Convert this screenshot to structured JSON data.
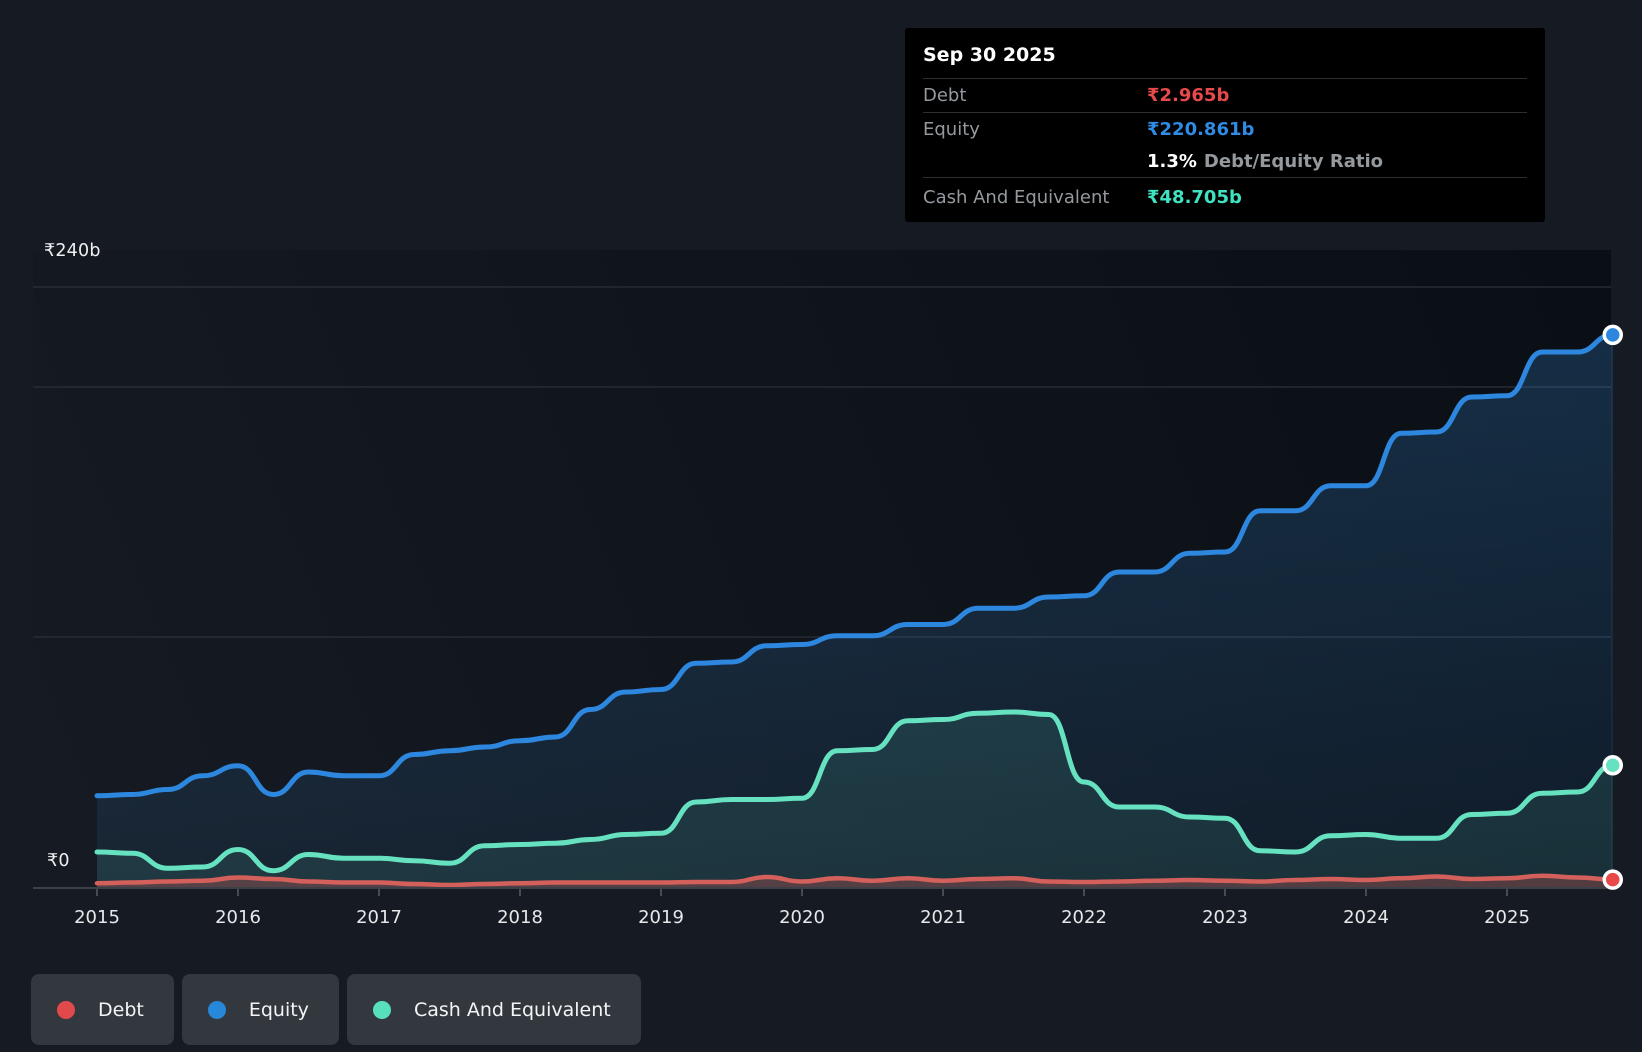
{
  "page": {
    "background": "#161b23"
  },
  "tooltip": {
    "date": "Sep 30 2025",
    "debt_label": "Debt",
    "debt_value": "₹2.965b",
    "equity_label": "Equity",
    "equity_value": "₹220.861b",
    "ratio_value": "1.3%",
    "ratio_label": "Debt/Equity Ratio",
    "cash_label": "Cash And Equivalent",
    "cash_value": "₹48.705b",
    "colors": {
      "debt": "#e8494b",
      "equity": "#2f8be4",
      "cash": "#3fe3c1"
    }
  },
  "y_axis": {
    "top_label": "₹240b",
    "zero_label": "₹0"
  },
  "legend": {
    "items": [
      {
        "label": "Debt",
        "color": "#e2494b"
      },
      {
        "label": "Equity",
        "color": "#2787d8"
      },
      {
        "label": "Cash And Equivalent",
        "color": "#58e0bd"
      }
    ]
  },
  "chart_data": {
    "type": "area",
    "x": [
      2015.0,
      2015.25,
      2015.5,
      2015.75,
      2016.0,
      2016.25,
      2016.5,
      2016.75,
      2017.0,
      2017.25,
      2017.5,
      2017.75,
      2018.0,
      2018.25,
      2018.5,
      2018.75,
      2019.0,
      2019.25,
      2019.5,
      2019.75,
      2020.0,
      2020.25,
      2020.5,
      2020.75,
      2021.0,
      2021.25,
      2021.5,
      2021.75,
      2022.0,
      2022.25,
      2022.5,
      2022.75,
      2023.0,
      2023.25,
      2023.5,
      2023.75,
      2024.0,
      2024.25,
      2024.5,
      2024.75,
      2025.0,
      2025.25,
      2025.5,
      2025.75
    ],
    "series": [
      {
        "name": "Equity",
        "color": "#2d87de",
        "fill_top": "rgba(49,125,189,0.30)",
        "fill_bottom": "rgba(49,125,189,0.10)",
        "values": [
          36.5,
          37,
          39,
          44.5,
          48.5,
          37,
          46,
          44.5,
          44.5,
          53,
          54.5,
          56,
          58.5,
          60,
          71,
          78,
          79,
          89.5,
          90,
          96.5,
          97,
          100.5,
          100.5,
          105,
          105,
          111.5,
          111.5,
          116,
          116.5,
          126,
          126,
          133.5,
          134,
          150.5,
          150.5,
          160.5,
          160.5,
          181.5,
          182,
          196,
          196.5,
          214,
          214,
          220.861
        ]
      },
      {
        "name": "Cash And Equivalent",
        "color": "#66e2c1",
        "fill_top": "rgba(102,226,193,0.17)",
        "fill_bottom": "rgba(102,226,193,0.10)",
        "values": [
          14,
          13.5,
          7.5,
          8,
          15,
          6.5,
          13,
          11.5,
          11.5,
          10.5,
          9.5,
          16.5,
          17,
          17.5,
          19,
          21,
          21.5,
          34,
          35,
          35,
          35.5,
          54.5,
          55,
          66.5,
          67,
          69.5,
          70,
          69,
          42,
          32,
          32,
          28,
          27.5,
          14.5,
          14,
          20.5,
          21,
          19.5,
          19.5,
          29,
          29.5,
          37.5,
          38,
          48.705
        ]
      },
      {
        "name": "Debt",
        "color": "#d4605c",
        "dot_color": "#e84848",
        "fill_top": "rgba(214,88,84,0.40)",
        "fill_bottom": "rgba(214,88,84,0.30)",
        "values": [
          1.5,
          1.8,
          2.2,
          2.5,
          3.8,
          3.2,
          2.2,
          1.8,
          1.8,
          1.2,
          0.8,
          1.2,
          1.5,
          1.8,
          1.8,
          1.8,
          1.8,
          2,
          2,
          4,
          2.2,
          3.5,
          2.5,
          3.5,
          2.5,
          3.2,
          3.5,
          2.2,
          2,
          2.2,
          2.5,
          2.8,
          2.5,
          2.2,
          2.8,
          3.2,
          2.8,
          3.5,
          4.2,
          3.2,
          3.5,
          4.5,
          3.8,
          2.965
        ]
      }
    ],
    "ylim": [
      0,
      240
    ],
    "xlim": [
      2015,
      2025.75
    ],
    "y_gridlines": [
      240,
      200,
      100
    ],
    "x_tick_labels": [
      "2015",
      "2016",
      "2017",
      "2018",
      "2019",
      "2020",
      "2021",
      "2022",
      "2023",
      "2024",
      "2025"
    ],
    "ylabel_top": "₹240b",
    "ylabel_zero": "₹0",
    "grid": "horizontal",
    "legend_position": "bottom"
  }
}
